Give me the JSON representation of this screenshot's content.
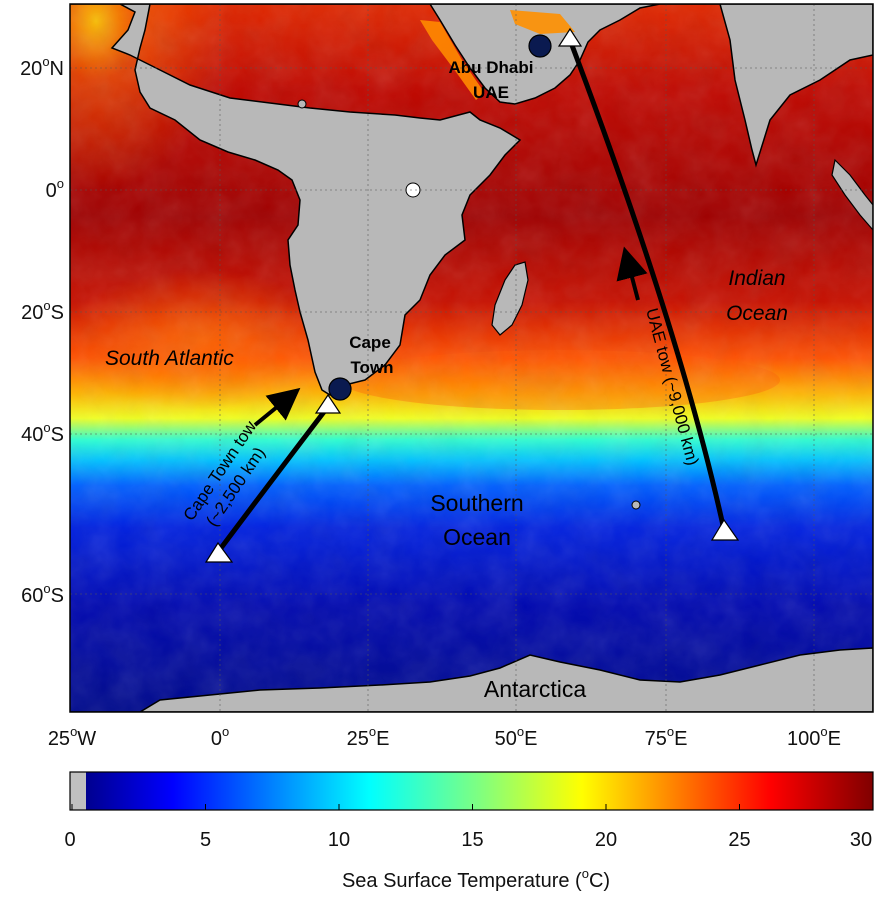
{
  "map": {
    "lat_ticks": [
      {
        "deg": "20",
        "hemi": "N"
      },
      {
        "deg": "0",
        "hemi": ""
      },
      {
        "deg": "20",
        "hemi": "S"
      },
      {
        "deg": "40",
        "hemi": "S"
      },
      {
        "deg": "60",
        "hemi": "S"
      }
    ],
    "lon_ticks": [
      {
        "deg": "25",
        "hemi": "W"
      },
      {
        "deg": "0",
        "hemi": ""
      },
      {
        "deg": "25",
        "hemi": "E"
      },
      {
        "deg": "50",
        "hemi": "E"
      },
      {
        "deg": "75",
        "hemi": "E"
      },
      {
        "deg": "100",
        "hemi": "E"
      }
    ],
    "labels": {
      "south_atlantic": "South Atlantic",
      "indian_ocean_1": "Indian",
      "indian_ocean_2": "Ocean",
      "southern_ocean_1": "Southern",
      "southern_ocean_2": "Ocean",
      "antarctica": "Antarctica",
      "cape_town_1": "Cape",
      "cape_town_2": "Town",
      "abu_dhabi_1": "Abu Dhabi",
      "abu_dhabi_2": "UAE"
    },
    "tows": {
      "cape_town_line1": "Cape Town tow",
      "cape_town_line2": "(~2,500 km)",
      "uae": "UAE tow (~9,000 km)"
    }
  },
  "colorbar": {
    "ticks": [
      "0",
      "5",
      "10",
      "15",
      "20",
      "25",
      "30"
    ],
    "label": "Sea Surface Temperature (",
    "unit_sup": "o",
    "unit_after": "C)",
    "range": [
      0,
      30
    ],
    "colormap": "jet"
  },
  "colors": {
    "land": "#b8b8b8",
    "deep_red": "#8a0000",
    "red": "#d01a00",
    "orange": "#ff8a00",
    "yellow": "#ffe400",
    "cyan": "#00e6ff",
    "blue": "#0030ff",
    "navy": "#000a90"
  }
}
